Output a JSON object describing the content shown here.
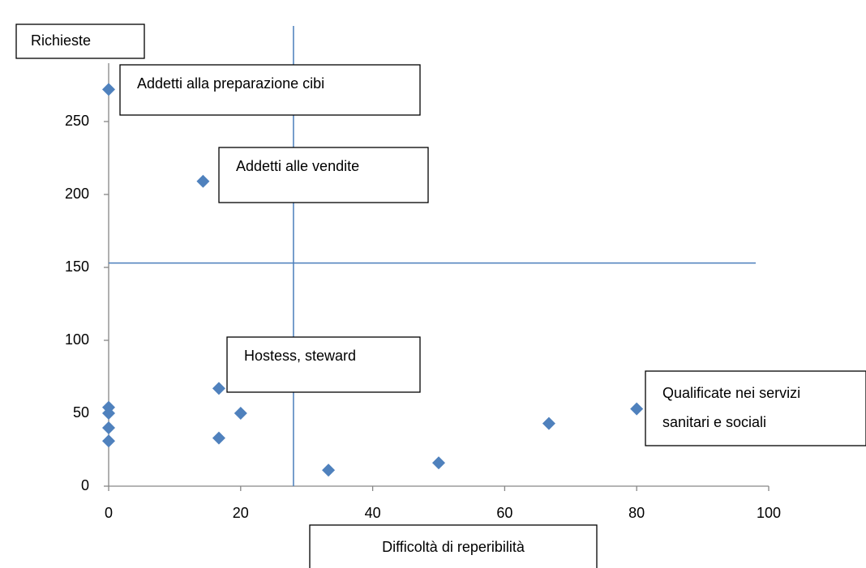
{
  "chart_data": {
    "type": "scatter",
    "y_label": "Richieste",
    "x_label": "Difficoltà di reperibilità",
    "color": "#4f81bd",
    "line_color": "#4a7ebb",
    "x": [
      0,
      14.3,
      16.7,
      20,
      16.7,
      0,
      0,
      0,
      0,
      33.3,
      50,
      66.7,
      80
    ],
    "values": [
      272,
      209,
      67,
      50,
      33,
      54,
      50,
      40,
      31,
      11,
      16,
      43,
      53
    ],
    "xlim": [
      0,
      100
    ],
    "xticks": [
      0,
      20,
      40,
      60,
      80,
      100
    ],
    "ylim": [
      0,
      290
    ],
    "yticks": [
      0,
      50,
      100,
      150,
      200,
      250
    ],
    "vline": 28,
    "hline": 153,
    "annotations": [
      [
        "Addetti alla preparazione cibi"
      ],
      [
        "Addetti alle vendite"
      ],
      [
        "Hostess, steward"
      ],
      [
        "Qualificate nei servizi",
        "sanitari e sociali"
      ]
    ]
  }
}
